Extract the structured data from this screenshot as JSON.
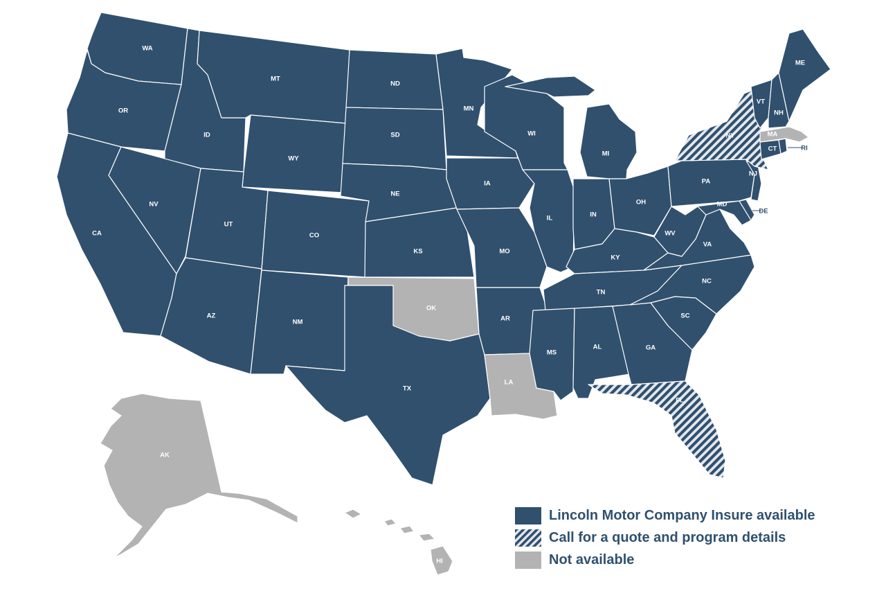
{
  "colors": {
    "available": "#30506e",
    "call": "#30506e",
    "call_stripe_bg": "#e4e8ee",
    "not_available": "#b3b3b3",
    "border": "#ffffff",
    "legend_text": "#30506e",
    "callout": "#30506e"
  },
  "legend": [
    {
      "status": "available",
      "label": "Lincoln Motor Company Insure available"
    },
    {
      "status": "call",
      "label": "Call for a quote and program details"
    },
    {
      "status": "not_available",
      "label": "Not available"
    }
  ],
  "states": [
    {
      "abbr": "WA",
      "status": "available"
    },
    {
      "abbr": "OR",
      "status": "available"
    },
    {
      "abbr": "CA",
      "status": "available"
    },
    {
      "abbr": "ID",
      "status": "available"
    },
    {
      "abbr": "NV",
      "status": "available"
    },
    {
      "abbr": "MT",
      "status": "available"
    },
    {
      "abbr": "WY",
      "status": "available"
    },
    {
      "abbr": "UT",
      "status": "available"
    },
    {
      "abbr": "AZ",
      "status": "available"
    },
    {
      "abbr": "CO",
      "status": "available"
    },
    {
      "abbr": "NM",
      "status": "available"
    },
    {
      "abbr": "ND",
      "status": "available"
    },
    {
      "abbr": "SD",
      "status": "available"
    },
    {
      "abbr": "NE",
      "status": "available"
    },
    {
      "abbr": "KS",
      "status": "available"
    },
    {
      "abbr": "OK",
      "status": "not_available"
    },
    {
      "abbr": "TX",
      "status": "available"
    },
    {
      "abbr": "MN",
      "status": "available"
    },
    {
      "abbr": "IA",
      "status": "available"
    },
    {
      "abbr": "MO",
      "status": "available"
    },
    {
      "abbr": "AR",
      "status": "available"
    },
    {
      "abbr": "LA",
      "status": "not_available"
    },
    {
      "abbr": "WI",
      "status": "available"
    },
    {
      "abbr": "IL",
      "status": "available"
    },
    {
      "abbr": "MI",
      "status": "available"
    },
    {
      "abbr": "IN",
      "status": "available"
    },
    {
      "abbr": "OH",
      "status": "available"
    },
    {
      "abbr": "KY",
      "status": "available"
    },
    {
      "abbr": "TN",
      "status": "available"
    },
    {
      "abbr": "MS",
      "status": "available"
    },
    {
      "abbr": "AL",
      "status": "available"
    },
    {
      "abbr": "GA",
      "status": "available"
    },
    {
      "abbr": "FL",
      "status": "call"
    },
    {
      "abbr": "SC",
      "status": "available"
    },
    {
      "abbr": "NC",
      "status": "available"
    },
    {
      "abbr": "VA",
      "status": "available"
    },
    {
      "abbr": "WV",
      "status": "available"
    },
    {
      "abbr": "MD",
      "status": "available"
    },
    {
      "abbr": "DE",
      "status": "available"
    },
    {
      "abbr": "PA",
      "status": "available"
    },
    {
      "abbr": "NJ",
      "status": "available"
    },
    {
      "abbr": "NY",
      "status": "call"
    },
    {
      "abbr": "CT",
      "status": "available"
    },
    {
      "abbr": "RI",
      "status": "available"
    },
    {
      "abbr": "MA",
      "status": "not_available"
    },
    {
      "abbr": "VT",
      "status": "available"
    },
    {
      "abbr": "NH",
      "status": "available"
    },
    {
      "abbr": "ME",
      "status": "available"
    },
    {
      "abbr": "AK",
      "status": "not_available"
    },
    {
      "abbr": "HI",
      "status": "not_available"
    }
  ]
}
